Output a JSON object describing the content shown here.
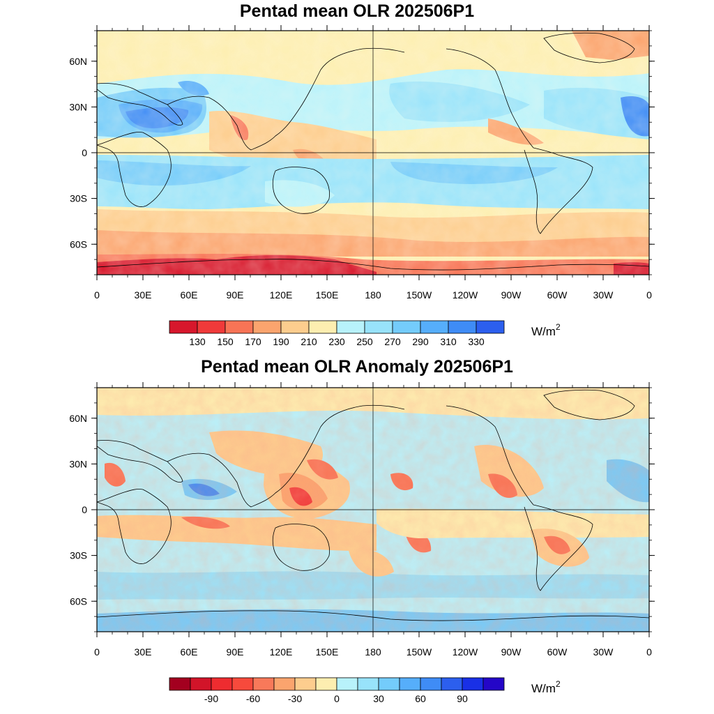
{
  "panels": [
    {
      "title": "Pentad mean OLR 202506P1",
      "lat_ticks": [
        "60N",
        "30N",
        "0",
        "30S",
        "60S"
      ],
      "lon_ticks": [
        "0",
        "30E",
        "60E",
        "90E",
        "120E",
        "150E",
        "180",
        "150W",
        "120W",
        "90W",
        "60W",
        "30W",
        "0"
      ],
      "colorbar": {
        "colors": [
          "#d7172c",
          "#f03a3a",
          "#f87456",
          "#fba46e",
          "#fdcd8e",
          "#fdeeb0",
          "#b8f2fb",
          "#98e3fb",
          "#74ccfb",
          "#56aefb",
          "#3f8cf6",
          "#2c5fee"
        ],
        "labels": [
          "130",
          "150",
          "170",
          "190",
          "210",
          "230",
          "250",
          "270",
          "290",
          "310",
          "330"
        ],
        "unit": "W/m",
        "unit_sup": "2"
      }
    },
    {
      "title": "Pentad mean OLR Anomaly 202506P1",
      "lat_ticks": [
        "60N",
        "30N",
        "0",
        "30S",
        "60S"
      ],
      "lon_ticks": [
        "0",
        "30E",
        "60E",
        "90E",
        "120E",
        "150E",
        "180",
        "150W",
        "120W",
        "90W",
        "60W",
        "30W",
        "0"
      ],
      "colorbar": {
        "colors": [
          "#a3001f",
          "#d21429",
          "#ee2c30",
          "#f74a3c",
          "#f8795a",
          "#fba46e",
          "#fdcd8e",
          "#fdeeb0",
          "#b8f2fb",
          "#98e3fb",
          "#74ccfb",
          "#56aefb",
          "#3f8cf6",
          "#2c5fee",
          "#1930e6",
          "#2406c8"
        ],
        "labels": [
          "-90",
          "-60",
          "-30",
          "0",
          "30",
          "60",
          "90"
        ],
        "unit": "W/m",
        "unit_sup": "2"
      }
    }
  ]
}
